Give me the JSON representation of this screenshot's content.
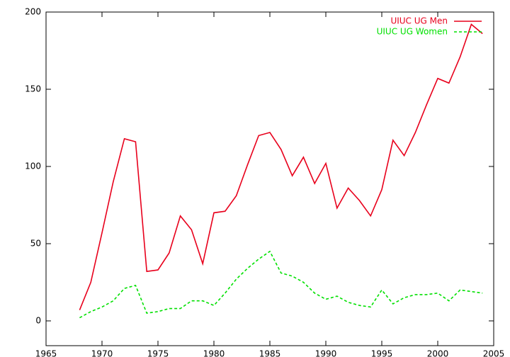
{
  "chart_data": {
    "type": "line",
    "title": "",
    "xlabel": "",
    "ylabel": "",
    "xlim": [
      1965,
      2005
    ],
    "ylim": [
      0,
      200
    ],
    "x_ticks": [
      1965,
      1970,
      1975,
      1980,
      1985,
      1990,
      1995,
      2000,
      2005
    ],
    "y_ticks": [
      0,
      50,
      100,
      150,
      200
    ],
    "grid": false,
    "legend_position": "top-right",
    "series": [
      {
        "name": "UIUC UG Men",
        "color": "#e8001c",
        "dash": "solid",
        "x": [
          1968,
          1969,
          1970,
          1971,
          1972,
          1973,
          1974,
          1975,
          1976,
          1977,
          1978,
          1979,
          1980,
          1981,
          1982,
          1983,
          1984,
          1985,
          1986,
          1987,
          1988,
          1989,
          1990,
          1991,
          1992,
          1993,
          1994,
          1995,
          1996,
          1997,
          1998,
          1999,
          2000,
          2001,
          2002,
          2003,
          2004
        ],
        "y": [
          7,
          25,
          57,
          90,
          118,
          116,
          32,
          33,
          44,
          68,
          59,
          37,
          70,
          71,
          81,
          101,
          120,
          122,
          111,
          94,
          106,
          89,
          102,
          73,
          86,
          78,
          68,
          85,
          117,
          107,
          122,
          140,
          157,
          154,
          171,
          192,
          186
        ]
      },
      {
        "name": "UIUC UG Women",
        "color": "#00e000",
        "dash": "dashed",
        "x": [
          1968,
          1969,
          1970,
          1971,
          1972,
          1973,
          1974,
          1975,
          1976,
          1977,
          1978,
          1979,
          1980,
          1981,
          1982,
          1983,
          1984,
          1985,
          1986,
          1987,
          1988,
          1989,
          1990,
          1991,
          1992,
          1993,
          1994,
          1995,
          1996,
          1997,
          1998,
          1999,
          2000,
          2001,
          2002,
          2003,
          2004
        ],
        "y": [
          2,
          6,
          9,
          13,
          21,
          23,
          5,
          6,
          8,
          8,
          13,
          13,
          10,
          18,
          27,
          34,
          40,
          45,
          31,
          29,
          25,
          18,
          14,
          16,
          12,
          10,
          9,
          20,
          11,
          15,
          17,
          17,
          18,
          13,
          20,
          19,
          18
        ]
      }
    ]
  }
}
